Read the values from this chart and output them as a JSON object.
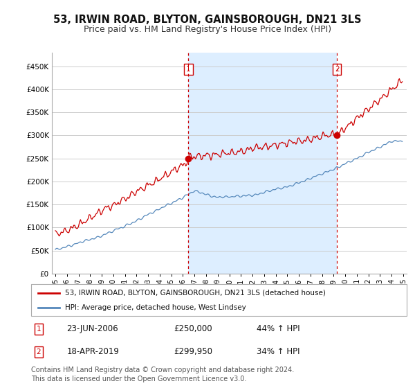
{
  "title": "53, IRWIN ROAD, BLYTON, GAINSBOROUGH, DN21 3LS",
  "subtitle": "Price paid vs. HM Land Registry's House Price Index (HPI)",
  "title_fontsize": 10.5,
  "subtitle_fontsize": 9,
  "ylabel_ticks": [
    "£0",
    "£50K",
    "£100K",
    "£150K",
    "£200K",
    "£250K",
    "£300K",
    "£350K",
    "£400K",
    "£450K"
  ],
  "ytick_values": [
    0,
    50000,
    100000,
    150000,
    200000,
    250000,
    300000,
    350000,
    400000,
    450000
  ],
  "ylim": [
    0,
    480000
  ],
  "xlim_start": 1994.7,
  "xlim_end": 2025.3,
  "line1_color": "#cc0000",
  "line2_color": "#5588bb",
  "shade_color": "#ddeeff",
  "vline_color": "#cc0000",
  "grid_color": "#cccccc",
  "background_color": "#ffffff",
  "legend_label1": "53, IRWIN ROAD, BLYTON, GAINSBOROUGH, DN21 3LS (detached house)",
  "legend_label2": "HPI: Average price, detached house, West Lindsey",
  "sale1_date": "23-JUN-2006",
  "sale1_price": "£250,000",
  "sale1_pct": "44% ↑ HPI",
  "sale1_year": 2006.47,
  "sale1_value": 250000,
  "sale2_date": "18-APR-2019",
  "sale2_price": "£299,950",
  "sale2_pct": "34% ↑ HPI",
  "sale2_year": 2019.29,
  "sale2_value": 299950,
  "footer": "Contains HM Land Registry data © Crown copyright and database right 2024.\nThis data is licensed under the Open Government Licence v3.0.",
  "footer_fontsize": 7
}
